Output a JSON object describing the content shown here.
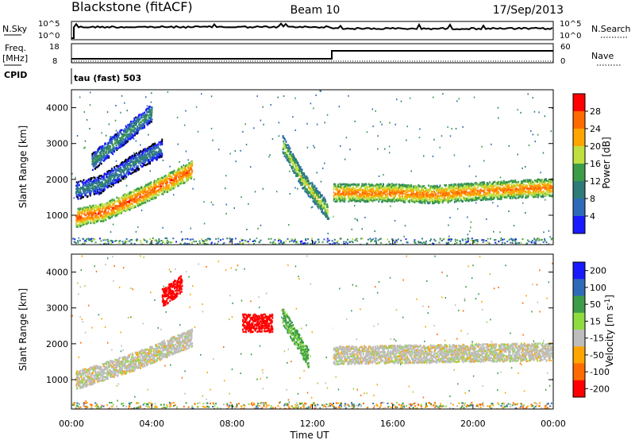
{
  "header": {
    "title_left": "Blackstone (fitACF)",
    "title_center": "Beam 10",
    "title_right": "17/Sep/2013"
  },
  "status_panels": {
    "nsky_label": "N.Sky",
    "nsearch_label": "N.Search",
    "freq_label_line1": "Freq.",
    "freq_label_line2": "[MHz]",
    "nave_label": "Nave",
    "cpid_label": "CPID",
    "cpid_text": "tau (fast) 503",
    "left_ticks_top": [
      "10^5",
      "10^0"
    ],
    "right_ticks_top": [
      "10^5",
      "10^0"
    ],
    "left_ticks_freq": [
      "18",
      "8"
    ],
    "right_ticks_nave": [
      "60",
      "0"
    ]
  },
  "chart_data": [
    {
      "type": "heatmap",
      "name": "Power",
      "ylabel": "Slant Range [km]",
      "yticks": [
        1000,
        2000,
        3000,
        4000
      ],
      "ylim": [
        180,
        4500
      ],
      "xlim": [
        0,
        24
      ],
      "colorbar": {
        "label": "Power [dB]",
        "ticks": [
          "28",
          "24",
          "20",
          "16",
          "12",
          "8",
          "4"
        ],
        "colors": [
          "#ff0000",
          "#ff6a00",
          "#ffa500",
          "#bfe040",
          "#3c9c48",
          "#2e7b78",
          "#2f6ab8",
          "#1a1aff"
        ],
        "range": [
          0,
          32
        ]
      },
      "features": [
        {
          "x": [
            0.2,
            1.5,
            3.0,
            4.5,
            6.0
          ],
          "y": [
            950,
            1100,
            1450,
            1850,
            2300
          ],
          "level": 28
        },
        {
          "x": [
            0.2,
            1.5,
            3.0,
            4.5
          ],
          "y": [
            1700,
            1900,
            2450,
            2900
          ],
          "level": 12
        },
        {
          "x": [
            1.0,
            2.5,
            4.0
          ],
          "y": [
            2500,
            3200,
            3900
          ],
          "level": 14
        },
        {
          "x": [
            10.5,
            11.5,
            12.8
          ],
          "y": [
            3000,
            2000,
            1100
          ],
          "level": 20
        },
        {
          "x": [
            13.0,
            16.0,
            18.0,
            20.0,
            22.0,
            24.0
          ],
          "y": [
            1650,
            1650,
            1600,
            1680,
            1750,
            1800
          ],
          "level": 26
        }
      ]
    },
    {
      "type": "heatmap",
      "name": "Velocity",
      "ylabel": "Slant Range [km]",
      "yticks": [
        1000,
        2000,
        3000,
        4000
      ],
      "ylim": [
        180,
        4500
      ],
      "xlim": [
        0,
        24
      ],
      "colorbar": {
        "label": "Velocity [m s",
        "label_sup": "-1",
        "label_end": "]",
        "ticks": [
          "200",
          "100",
          "50",
          "15",
          "-15",
          "-50",
          "-100",
          "-200"
        ],
        "colors": [
          "#1a1aff",
          "#2f6ab8",
          "#3c9c48",
          "#8fdc3f",
          "#bdbdbd",
          "#ffa500",
          "#ff6a00",
          "#ff0000"
        ],
        "range": [
          -250,
          250
        ]
      },
      "features": [
        {
          "x": [
            0.2,
            3.0,
            6.0
          ],
          "y": [
            1000,
            1500,
            2200
          ],
          "level": 0
        },
        {
          "x": [
            4.5,
            5.5
          ],
          "y": [
            3300,
            3700
          ],
          "level": -200
        },
        {
          "x": [
            8.5,
            10.0
          ],
          "y": [
            2600,
            2600
          ],
          "level": -200
        },
        {
          "x": [
            10.5,
            11.8
          ],
          "y": [
            2800,
            1600
          ],
          "level": 40
        },
        {
          "x": [
            13.0,
            24.0
          ],
          "y": [
            1700,
            1800
          ],
          "level": 0
        }
      ]
    }
  ],
  "x_axis": {
    "ticks": [
      "00:00",
      "04:00",
      "08:00",
      "12:00",
      "16:00",
      "20:00",
      "00:00"
    ],
    "label": "Time UT"
  }
}
